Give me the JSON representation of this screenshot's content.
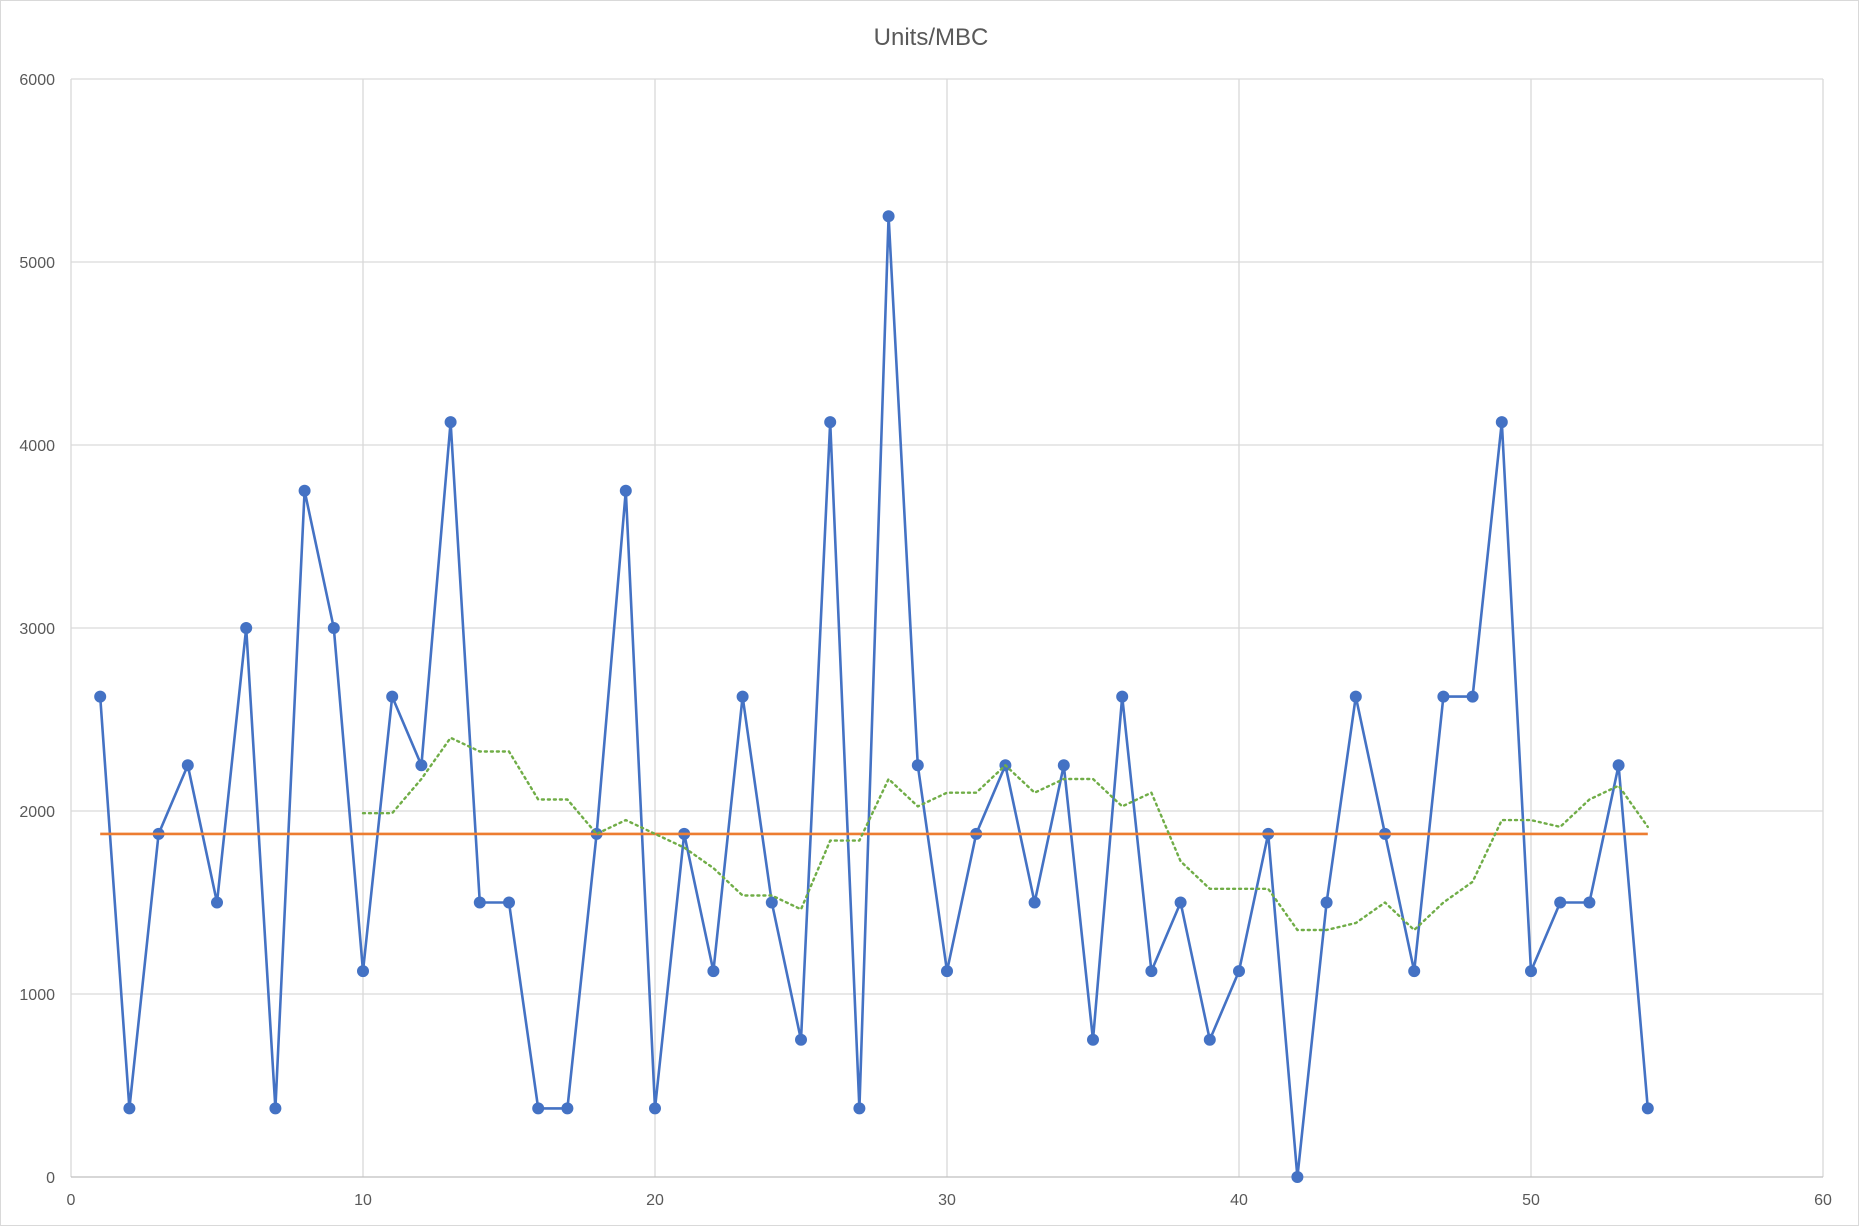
{
  "chart_data": {
    "type": "scatter",
    "title": "Units/MBC",
    "xlabel": "",
    "ylabel": "",
    "xlim": [
      0,
      60
    ],
    "ylim": [
      0,
      6000
    ],
    "x_ticks": [
      0,
      10,
      20,
      30,
      40,
      50,
      60
    ],
    "y_ticks": [
      0,
      1000,
      2000,
      3000,
      4000,
      5000,
      6000
    ],
    "grid": true,
    "legend": "none",
    "series": [
      {
        "style": "lines-markers",
        "color": "#4472c4",
        "x": [
          1,
          2,
          3,
          4,
          5,
          6,
          7,
          8,
          9,
          10,
          11,
          12,
          13,
          14,
          15,
          16,
          17,
          18,
          19,
          20,
          21,
          22,
          23,
          24,
          25,
          26,
          27,
          28,
          29,
          30,
          31,
          32,
          33,
          34,
          35,
          36,
          37,
          38,
          39,
          40,
          41,
          42,
          43,
          44,
          45,
          46,
          47,
          48,
          49,
          50,
          51,
          52,
          53,
          54
        ],
        "y": [
          2625,
          375,
          1875,
          2250,
          1500,
          3000,
          375,
          3750,
          3000,
          1125,
          2625,
          2250,
          4125,
          1500,
          1500,
          375,
          375,
          1875,
          3750,
          375,
          1875,
          1125,
          2625,
          1500,
          750,
          4125,
          375,
          5250,
          2250,
          1125,
          1875,
          2250,
          1500,
          2250,
          750,
          2625,
          1125,
          1500,
          750,
          1125,
          1875,
          0,
          1500,
          2625,
          1875,
          1125,
          2625,
          2625,
          4125,
          1125,
          1500,
          1500,
          2250,
          375
        ]
      },
      {
        "style": "line",
        "color": "#ed7d31",
        "x": [
          1,
          54
        ],
        "y": [
          1875,
          1875
        ]
      },
      {
        "style": "dotted",
        "color": "#70ad47",
        "x": [
          10,
          11,
          12,
          13,
          14,
          15,
          16,
          17,
          18,
          19,
          20,
          21,
          22,
          23,
          24,
          25,
          26,
          27,
          28,
          29,
          30,
          31,
          32,
          33,
          34,
          35,
          36,
          37,
          38,
          39,
          40,
          41,
          42,
          43,
          44,
          45,
          46,
          47,
          48,
          49,
          50,
          51,
          52,
          53,
          54
        ],
        "y": [
          1988,
          1988,
          2175,
          2400,
          2325,
          2325,
          2063,
          2063,
          1875,
          1950,
          1875,
          1800,
          1688,
          1538,
          1538,
          1463,
          1838,
          1838,
          2175,
          2025,
          2100,
          2100,
          2250,
          2100,
          2175,
          2175,
          2025,
          2100,
          1725,
          1575,
          1575,
          1575,
          1350,
          1350,
          1388,
          1500,
          1350,
          1500,
          1613,
          1950,
          1950,
          1913,
          2063,
          2138,
          1913
        ]
      }
    ]
  }
}
